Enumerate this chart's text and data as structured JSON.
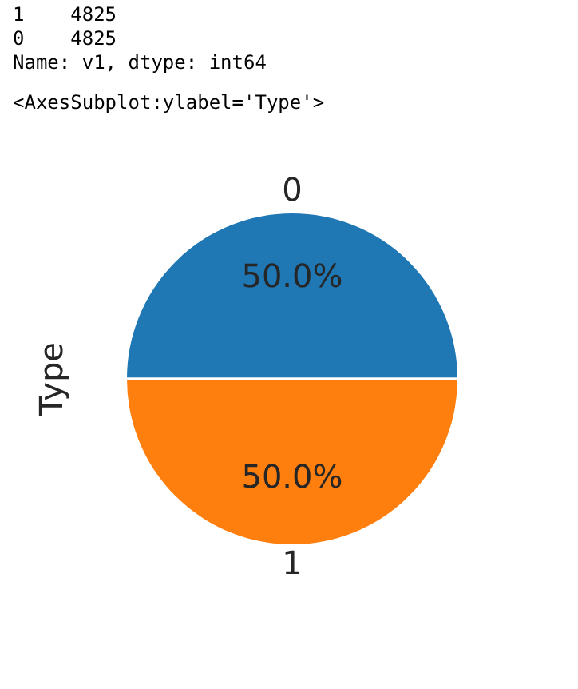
{
  "chart_data": {
    "type": "pie",
    "ylabel": "Type",
    "annotations": [
      "1    4825",
      "0    4825",
      "Name: v1, dtype: int64",
      "<AxesSubplot:ylabel='Type'>"
    ],
    "categories": [
      "0",
      "1"
    ],
    "values": [
      50,
      50
    ],
    "value_labels": [
      "50.0%",
      "50.0%"
    ],
    "colors": [
      "#1f77b4",
      "#ff7f0e"
    ],
    "legend": false
  }
}
